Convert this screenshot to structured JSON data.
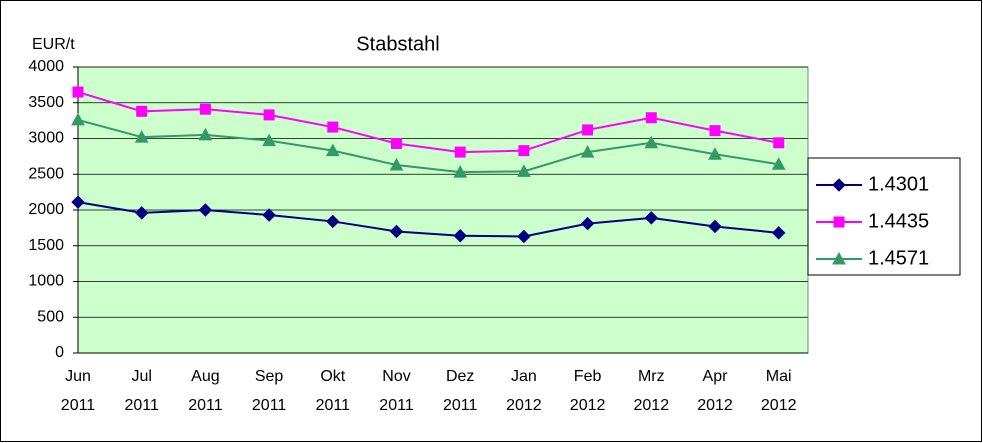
{
  "chart_data": {
    "type": "line",
    "title": "Stabstahl",
    "y_label": "EUR/t",
    "categories": [
      "Jun 2011",
      "Jul 2011",
      "Aug 2011",
      "Sep 2011",
      "Okt 2011",
      "Nov 2011",
      "Dez 2011",
      "Jan 2012",
      "Feb 2012",
      "Mrz 2012",
      "Apr 2012",
      "Mai 2012"
    ],
    "series": [
      {
        "name": "1.4301",
        "color": "#000080",
        "marker": "diamond",
        "values": [
          2110,
          1960,
          2000,
          1930,
          1840,
          1700,
          1640,
          1630,
          1810,
          1890,
          1770,
          1680
        ]
      },
      {
        "name": "1.4435",
        "color": "#ff00ff",
        "marker": "square",
        "values": [
          3650,
          3380,
          3410,
          3330,
          3160,
          2930,
          2810,
          2830,
          3120,
          3290,
          3110,
          2940
        ]
      },
      {
        "name": "1.4571",
        "color": "#339966",
        "marker": "triangle",
        "values": [
          3260,
          3020,
          3050,
          2970,
          2830,
          2630,
          2530,
          2540,
          2810,
          2940,
          2780,
          2640
        ]
      }
    ],
    "ylim": [
      0,
      4000
    ],
    "yticks": [
      0,
      500,
      1000,
      1500,
      2000,
      2500,
      3000,
      3500,
      4000
    ],
    "grid": true,
    "legend": "right"
  }
}
